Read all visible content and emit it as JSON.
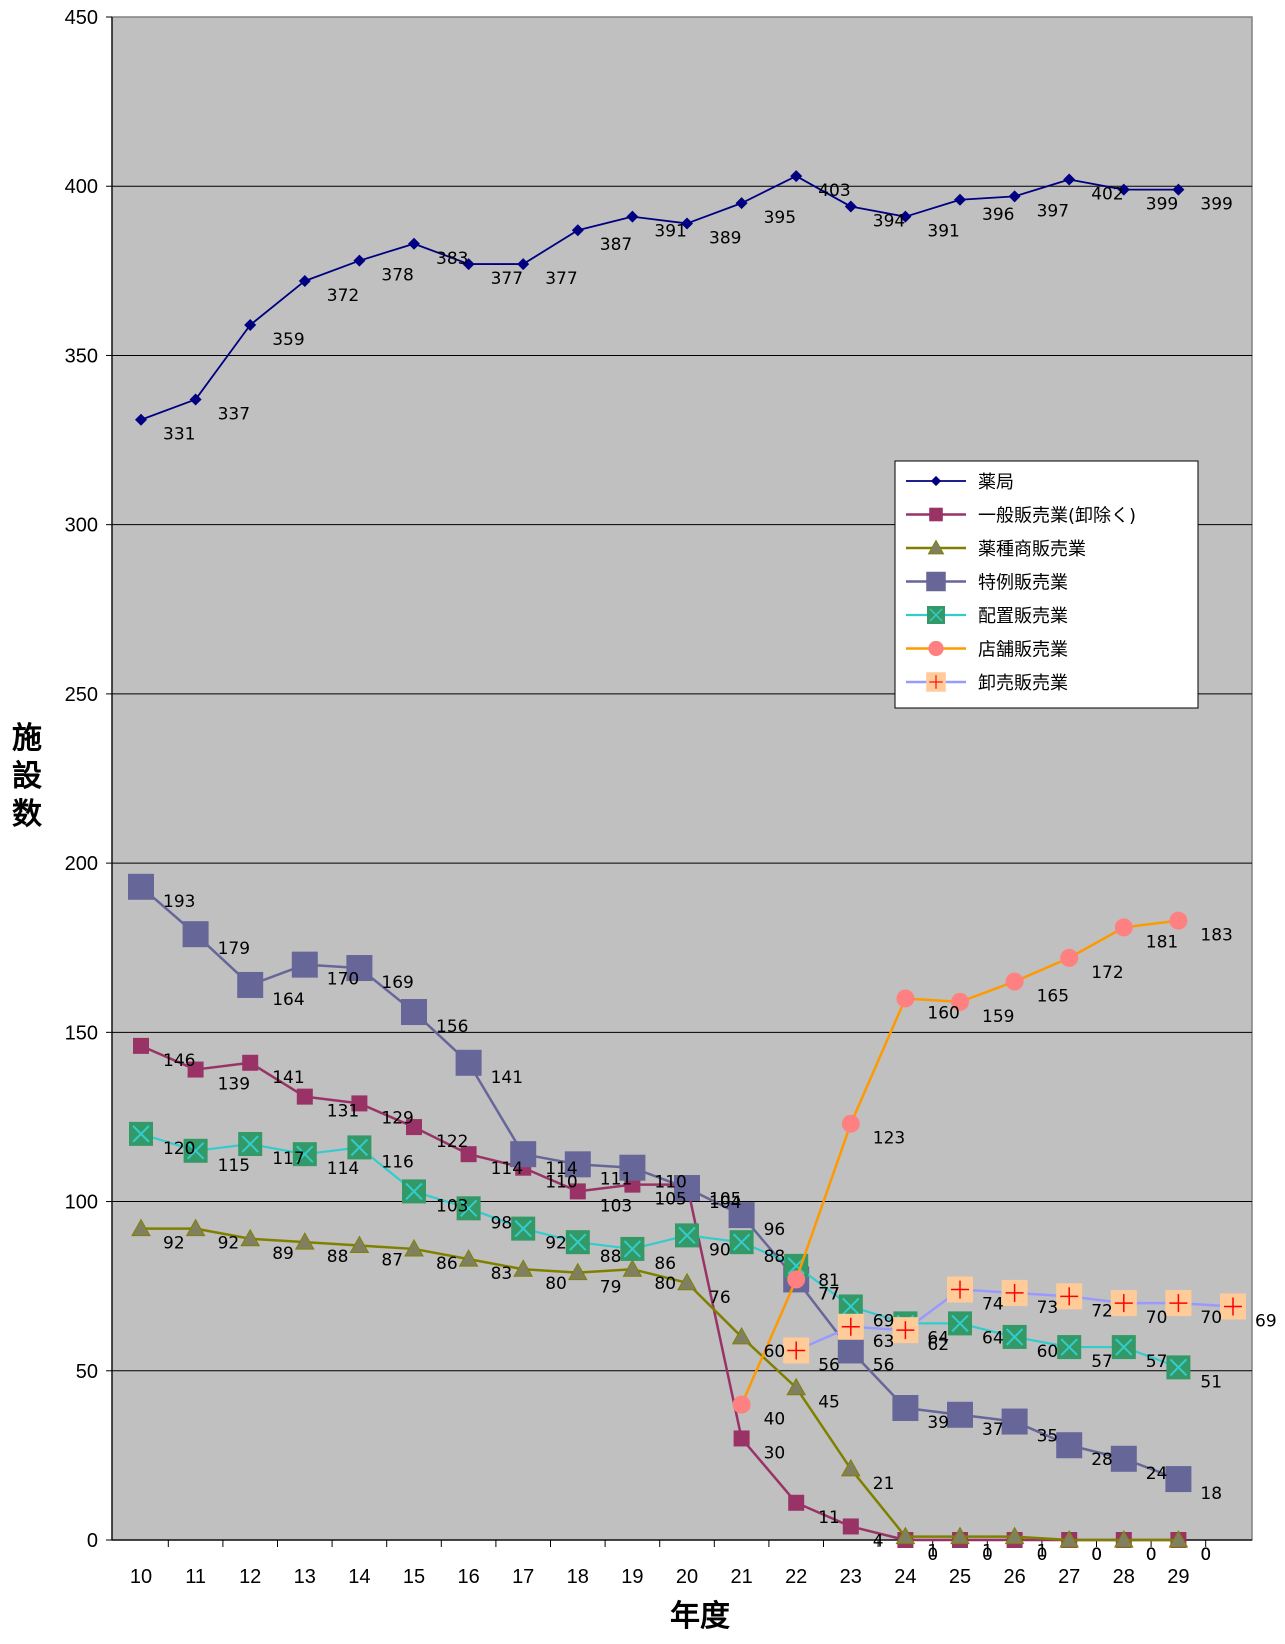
{
  "chart_data": {
    "type": "line",
    "title": "",
    "xlabel": "年度",
    "ylabel": "施設数",
    "ylim": [
      0,
      450
    ],
    "yticks": [
      0,
      50,
      100,
      150,
      200,
      250,
      300,
      350,
      400,
      450
    ],
    "grid": true,
    "legend_position": "right, middle",
    "plot_background": "#c0c0c0",
    "x": [
      "10",
      "11",
      "12",
      "13",
      "14",
      "15",
      "16",
      "17",
      "18",
      "19",
      "20",
      "21",
      "22",
      "23",
      "24",
      "25",
      "26",
      "27",
      "28",
      "29"
    ],
    "series": [
      {
        "name": "薬局",
        "color": "#000080",
        "marker": "diamond",
        "values": [
          331,
          337,
          359,
          372,
          378,
          383,
          377,
          377,
          387,
          391,
          389,
          395,
          403,
          394,
          391,
          396,
          397,
          402,
          399,
          399
        ]
      },
      {
        "name": "一般販売業(卸除く)",
        "color": "#993366",
        "marker": "square",
        "values": [
          146,
          139,
          141,
          131,
          129,
          122,
          114,
          110,
          103,
          105,
          105,
          30,
          11,
          4,
          0,
          0,
          0,
          0,
          0,
          0
        ]
      },
      {
        "name": "薬種商販売業",
        "color": "#808000",
        "marker": "triangle",
        "values": [
          92,
          92,
          89,
          88,
          87,
          86,
          83,
          80,
          79,
          80,
          76,
          60,
          45,
          21,
          1,
          1,
          1,
          0,
          0,
          0
        ]
      },
      {
        "name": "特例販売業",
        "color": "#666699",
        "marker": "big-square",
        "values": [
          193,
          179,
          164,
          170,
          169,
          156,
          141,
          114,
          111,
          110,
          104,
          96,
          77,
          56,
          39,
          37,
          35,
          28,
          24,
          18
        ]
      },
      {
        "name": "配置販売業",
        "color": "#33cccc",
        "marker": "x-square",
        "values": [
          120,
          115,
          117,
          114,
          116,
          103,
          98,
          92,
          88,
          86,
          90,
          88,
          81,
          69,
          64,
          64,
          60,
          57,
          57,
          51
        ]
      },
      {
        "name": "店舗販売業",
        "color": "#ff9900",
        "marker": "circle",
        "x": [
          "21",
          "22",
          "23",
          "24",
          "25",
          "26",
          "27",
          "28",
          "29"
        ],
        "values": [
          40,
          77,
          123,
          160,
          159,
          165,
          172,
          181,
          183
        ]
      },
      {
        "name": "卸売販売業",
        "color": "#9999ff",
        "marker": "plus-square",
        "x": [
          "22",
          "23",
          "24",
          "25",
          "26",
          "27",
          "28",
          "29",
          "30"
        ],
        "values": [
          56,
          63,
          62,
          74,
          73,
          72,
          70,
          70,
          69
        ]
      }
    ]
  }
}
